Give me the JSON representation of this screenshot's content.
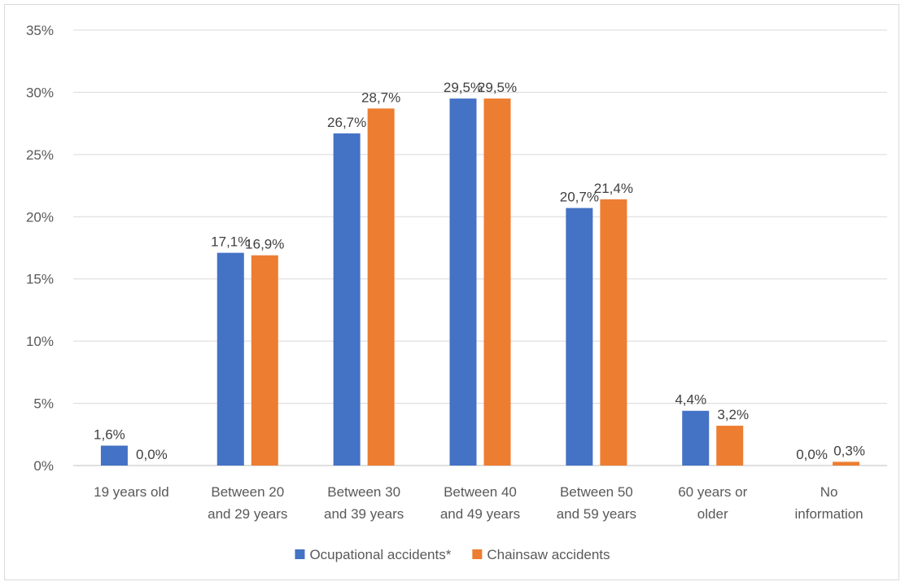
{
  "chart_data": {
    "type": "bar",
    "title": "",
    "xlabel": "",
    "ylabel": "",
    "ylim": [
      0,
      35
    ],
    "ytick_step": 5,
    "ytick_labels": [
      "0%",
      "5%",
      "10%",
      "15%",
      "20%",
      "25%",
      "30%",
      "35%"
    ],
    "grid": true,
    "legend_position": "bottom",
    "categories": [
      [
        "19 years old"
      ],
      [
        "Between 20",
        "and 29 years"
      ],
      [
        "Between 30",
        "and 39 years"
      ],
      [
        "Between 40",
        "and 49 years"
      ],
      [
        "Between 50",
        "and 59 years"
      ],
      [
        "60 years or",
        "older"
      ],
      [
        "No",
        "information"
      ]
    ],
    "series": [
      {
        "name": "Ocupational accidents*",
        "color": "#4472c4",
        "values": [
          1.6,
          17.1,
          26.7,
          29.5,
          20.7,
          4.4,
          0.0
        ],
        "labels": [
          "1,6%",
          "17,1%",
          "26,7%",
          "29,5%",
          "20,7%",
          "4,4%",
          "0,0%"
        ]
      },
      {
        "name": "Chainsaw accidents",
        "color": "#ed7d31",
        "values": [
          0.0,
          16.9,
          28.7,
          29.5,
          21.4,
          3.2,
          0.3
        ],
        "labels": [
          "0,0%",
          "16,9%",
          "28,7%",
          "29,5%",
          "21,4%",
          "3,2%",
          "0,3%"
        ]
      }
    ]
  }
}
